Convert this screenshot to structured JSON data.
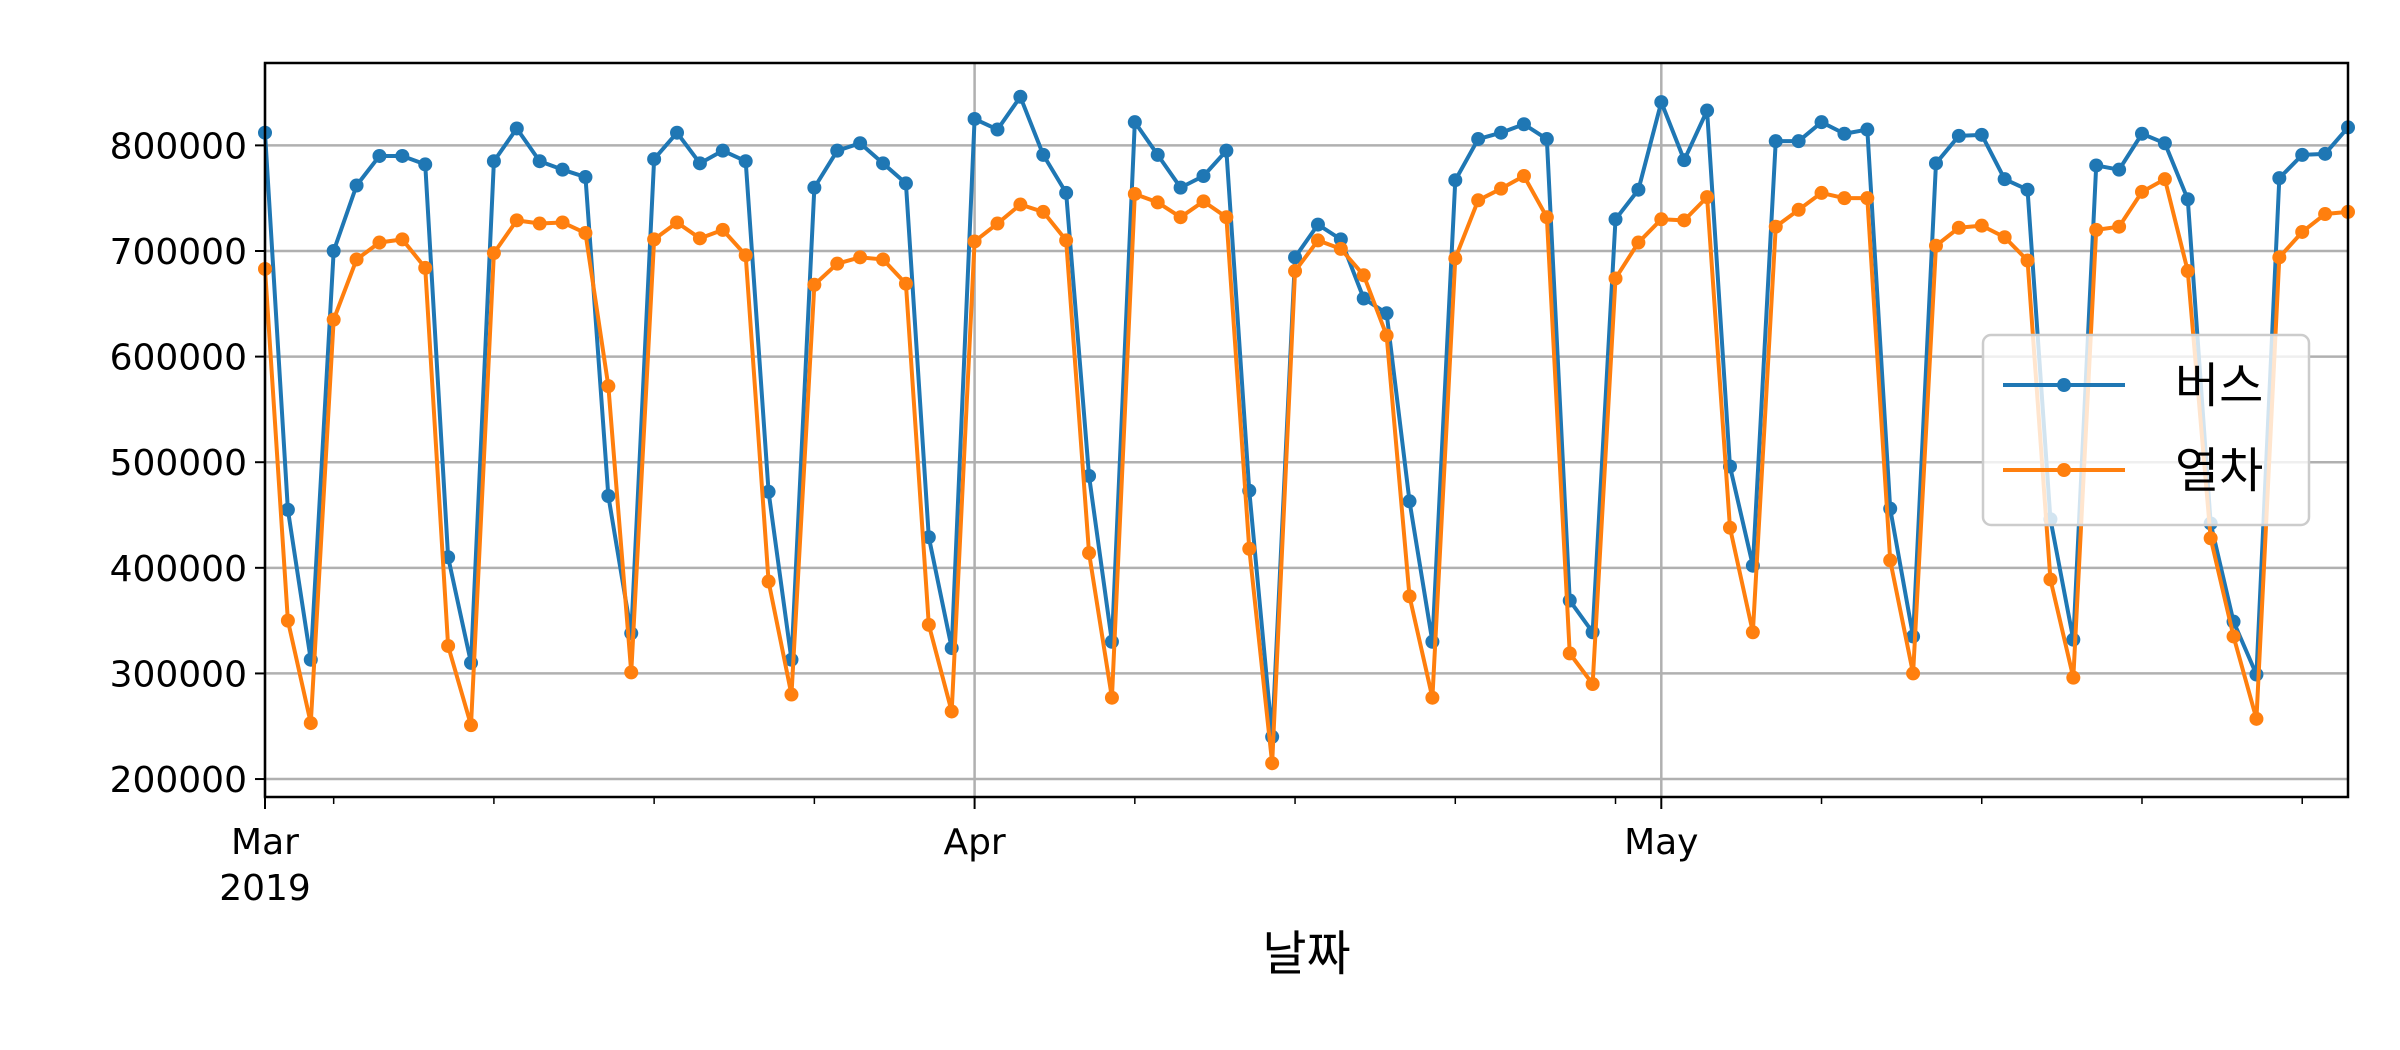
{
  "chart_data": {
    "type": "line",
    "title": "",
    "xlabel": "날짜",
    "ylabel": "",
    "x_start": "2019-03-01",
    "x_end": "2019-05-31",
    "xlim_days": [
      0,
      91
    ],
    "ylim": [
      183000,
      878000
    ],
    "grid": true,
    "legend_position": "center-right",
    "y_ticks": [
      200000,
      300000,
      400000,
      500000,
      600000,
      700000,
      800000
    ],
    "y_tick_labels": [
      "200000",
      "300000",
      "400000",
      "500000",
      "600000",
      "700000",
      "800000"
    ],
    "x_major_ticks": [
      {
        "day": 0,
        "label": "Mar",
        "sublabel": "2019"
      },
      {
        "day": 31,
        "label": "Apr",
        "sublabel": ""
      },
      {
        "day": 61,
        "label": "May",
        "sublabel": ""
      }
    ],
    "x_minor_ticks": [
      3,
      10,
      17,
      24,
      38,
      45,
      52,
      59,
      68,
      75,
      82,
      89
    ],
    "series": [
      {
        "name": "버스",
        "color": "#1f77b4",
        "values": [
          812000,
          455000,
          313000,
          700000,
          762000,
          790000,
          790000,
          782000,
          410000,
          310000,
          785000,
          816000,
          785000,
          777000,
          770000,
          468000,
          338000,
          787000,
          812000,
          783000,
          795000,
          785000,
          472000,
          313000,
          760000,
          795000,
          802000,
          783000,
          764000,
          429000,
          324000,
          825000,
          815000,
          846000,
          791000,
          755000,
          487000,
          330000,
          822000,
          791000,
          760000,
          771000,
          795000,
          473000,
          240000,
          694000,
          725000,
          711000,
          655000,
          641000,
          463000,
          330000,
          767000,
          806000,
          812000,
          820000,
          806000,
          369000,
          339000,
          730000,
          758000,
          841000,
          786000,
          833000,
          496000,
          402000,
          804000,
          804000,
          822000,
          811000,
          815000,
          456000,
          335000,
          783000,
          809000,
          810000,
          768000,
          758000,
          446000,
          332000,
          781000,
          777000,
          811000,
          802000,
          749000,
          442000,
          349000,
          299000,
          769000,
          791000,
          792000,
          817000
        ]
      },
      {
        "name": "열차",
        "color": "#ff7f0e",
        "values": [
          683000,
          350000,
          253000,
          635000,
          692000,
          708000,
          711000,
          684000,
          326000,
          251000,
          698000,
          729000,
          726000,
          727000,
          717000,
          572000,
          301000,
          711000,
          727000,
          712000,
          720000,
          696000,
          387000,
          280000,
          668000,
          688000,
          694000,
          692000,
          669000,
          346000,
          264000,
          709000,
          726000,
          744000,
          737000,
          710000,
          414000,
          277000,
          754000,
          746000,
          732000,
          747000,
          732000,
          418000,
          215000,
          681000,
          710000,
          702000,
          677000,
          620000,
          373000,
          277000,
          693000,
          748000,
          759000,
          771000,
          732000,
          319000,
          290000,
          674000,
          708000,
          730000,
          729000,
          751000,
          438000,
          339000,
          723000,
          739000,
          755000,
          750000,
          750000,
          407000,
          300000,
          705000,
          722000,
          724000,
          713000,
          691000,
          389000,
          296000,
          720000,
          723000,
          756000,
          768000,
          681000,
          428000,
          335000,
          257000,
          694000,
          718000,
          735000,
          737000
        ]
      }
    ]
  }
}
